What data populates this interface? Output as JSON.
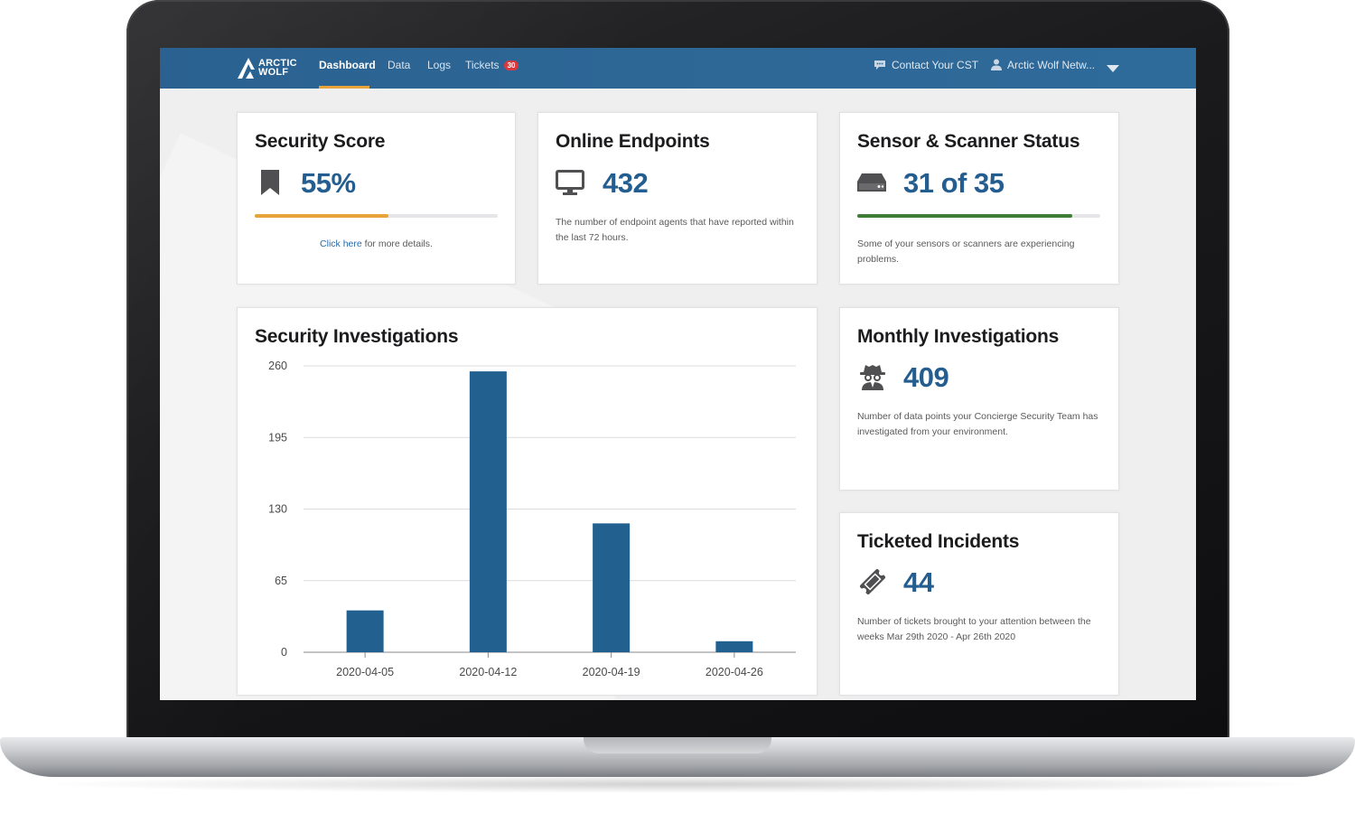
{
  "app": {
    "brand_line1": "ARCTIC",
    "brand_line2": "WOLF"
  },
  "nav": {
    "items": [
      {
        "label": "Dashboard",
        "active": true
      },
      {
        "label": "Data",
        "active": false
      },
      {
        "label": "Logs",
        "active": false
      },
      {
        "label": "Tickets",
        "active": false,
        "badge": "30"
      }
    ],
    "contact_label": "Contact Your CST",
    "account_label": "Arctic Wolf Netw...",
    "contact_icon": "chat-bubble-icon",
    "account_icon": "user-icon",
    "dropdown_icon": "caret-down-icon"
  },
  "cards": {
    "security_score": {
      "title": "Security Score",
      "value": "55%",
      "progress": 0.55,
      "progress_color": "#e8a33b",
      "link_label": "Click here",
      "link_suffix": " for more details.",
      "icon": "bookmark-icon"
    },
    "online_endpoints": {
      "title": "Online Endpoints",
      "value": "432",
      "description": "The number of endpoint agents that have reported within the last 72 hours.",
      "icon": "monitor-icon"
    },
    "sensor_status": {
      "title": "Sensor & Scanner Status",
      "value": "31 of 35",
      "progress": 0.886,
      "progress_color": "#3f7d37",
      "description": "Some of your sensors or scanners are experiencing problems.",
      "icon": "server-drive-icon"
    },
    "monthly_investigations": {
      "title": "Monthly Investigations",
      "value": "409",
      "description": "Number of data points your Concierge Security Team has investigated from your environment.",
      "icon": "spy-icon"
    },
    "ticketed_incidents": {
      "title": "Ticketed Incidents",
      "value": "44",
      "description": "Number of tickets brought to your attention between the weeks Mar 29th 2020 - Apr 26th 2020",
      "icon": "ticket-icon"
    },
    "security_investigations": {
      "title": "Security Investigations"
    }
  },
  "colors": {
    "accent": "#245d8f",
    "nav_bg": "#2d6796",
    "bar": "#22618f"
  },
  "chart_data": {
    "type": "bar",
    "title": "Security Investigations",
    "categories": [
      "2020-04-05",
      "2020-04-12",
      "2020-04-19",
      "2020-04-26"
    ],
    "values": [
      38,
      255,
      117,
      10
    ],
    "ylim": [
      0,
      260
    ],
    "yticks": [
      0,
      65,
      130,
      195,
      260
    ],
    "xlabel": "",
    "ylabel": "",
    "grid": true
  }
}
